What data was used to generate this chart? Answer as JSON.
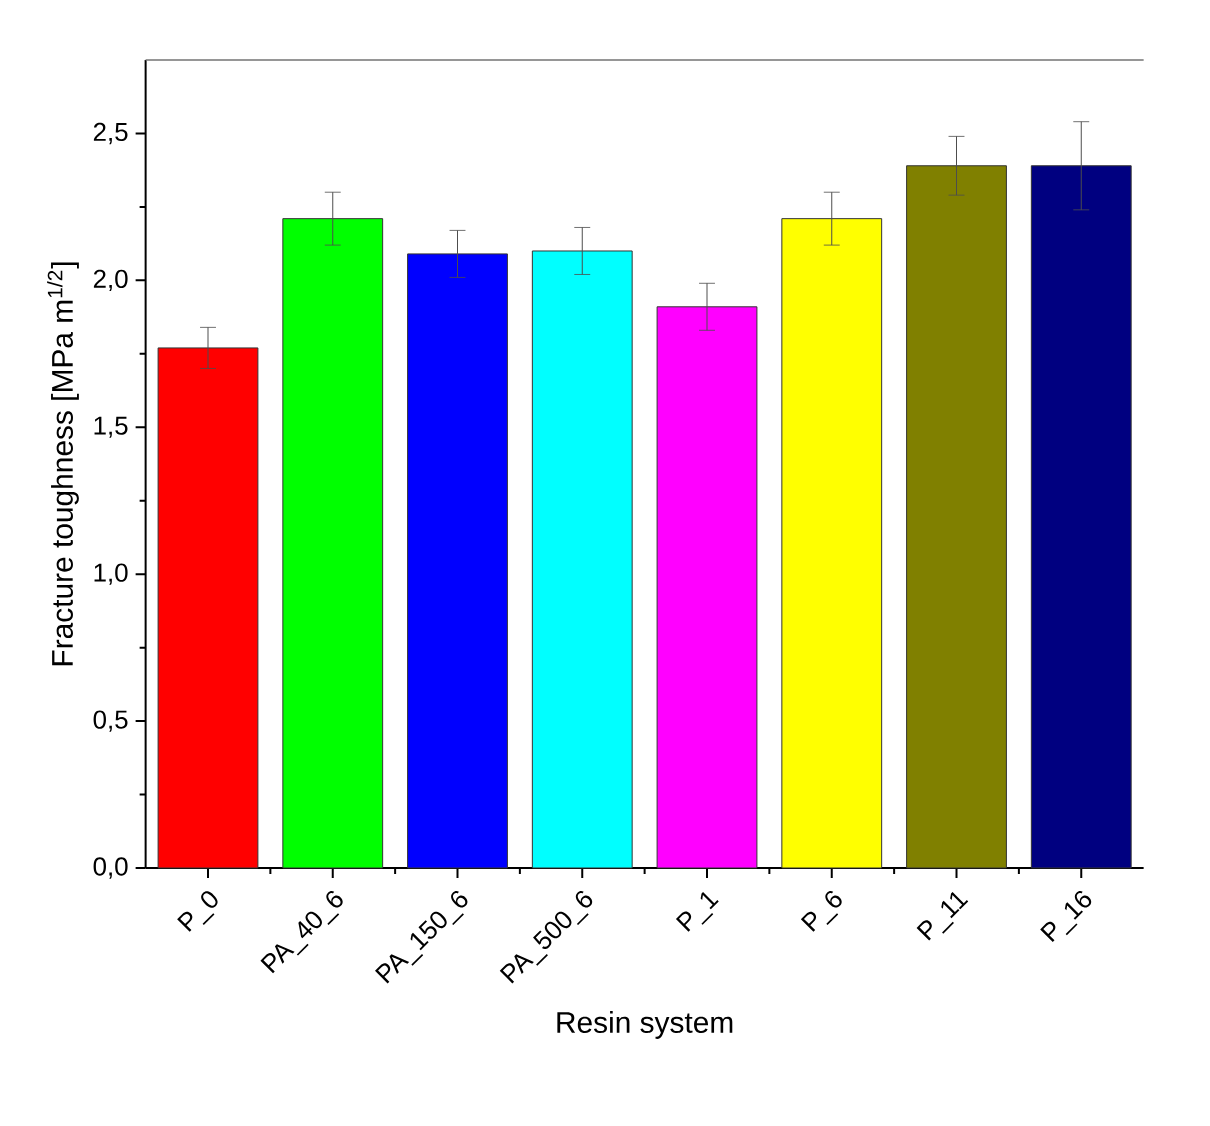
{
  "chart_data": {
    "type": "bar",
    "xlabel": "Resin system",
    "ylabel": "Fracture toughness [MPa m$^{1/2}$]",
    "categories": [
      "P_0",
      "PA_40_6",
      "PA_150_6",
      "PA_500_6",
      "P_1",
      "P_6",
      "P_11",
      "P_16"
    ],
    "values": [
      1.77,
      2.21,
      2.09,
      2.1,
      1.91,
      2.21,
      2.39,
      2.39
    ],
    "errors": [
      0.07,
      0.09,
      0.08,
      0.08,
      0.08,
      0.09,
      0.1,
      0.15
    ],
    "colors": [
      "#ff0000",
      "#00ff00",
      "#0000ff",
      "#00ffff",
      "#ff00ff",
      "#ffff00",
      "#808000",
      "#000080"
    ],
    "ylim": [
      0,
      2.75
    ],
    "yticks": [
      {
        "value": 0,
        "label": "0,0"
      },
      {
        "value": 0.25,
        "label": null
      },
      {
        "value": 0.5,
        "label": "0,5"
      },
      {
        "value": 0.75,
        "label": null
      },
      {
        "value": 1.0,
        "label": "1,0"
      },
      {
        "value": 1.25,
        "label": null
      },
      {
        "value": 1.5,
        "label": "1,5"
      },
      {
        "value": 1.75,
        "label": null
      },
      {
        "value": 2.0,
        "label": "2,0"
      },
      {
        "value": 2.25,
        "label": null
      },
      {
        "value": 2.5,
        "label": "2,5"
      }
    ]
  }
}
